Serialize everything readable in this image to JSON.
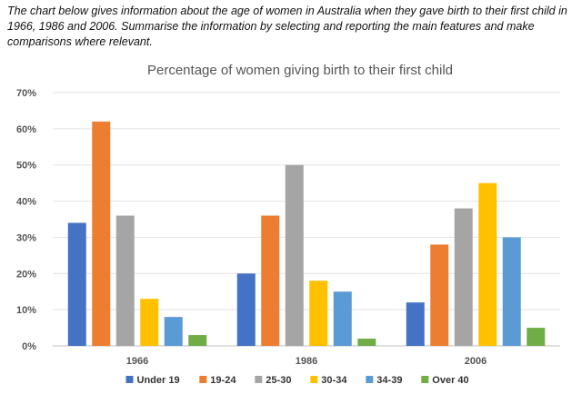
{
  "prompt_text": "The chart below gives information about the age of women in Australia when they gave birth to their first child in 1966, 1986 and 2006. Summarise the information by selecting and reporting the main features and make comparisons where relevant.",
  "chart_data": {
    "type": "bar",
    "title": "Percentage of women giving birth to their first child",
    "xlabel": "",
    "ylabel": "",
    "categories": [
      "1966",
      "1986",
      "2006"
    ],
    "ylim": [
      0,
      70
    ],
    "y_ticks": [
      "0%",
      "10%",
      "20%",
      "30%",
      "40%",
      "50%",
      "60%",
      "70%"
    ],
    "grid": true,
    "legend_position": "bottom",
    "series": [
      {
        "name": "Under 19",
        "color": "#4472C4",
        "values": [
          34,
          20,
          12
        ]
      },
      {
        "name": "19-24",
        "color": "#ED7D31",
        "values": [
          62,
          36,
          28
        ]
      },
      {
        "name": "25-30",
        "color": "#A5A5A5",
        "values": [
          36,
          50,
          38
        ]
      },
      {
        "name": "30-34",
        "color": "#FFC000",
        "values": [
          13,
          18,
          45
        ]
      },
      {
        "name": "34-39",
        "color": "#5B9BD5",
        "values": [
          8,
          15,
          30
        ]
      },
      {
        "name": "Over 40",
        "color": "#70AD47",
        "values": [
          3,
          2,
          5
        ]
      }
    ]
  }
}
